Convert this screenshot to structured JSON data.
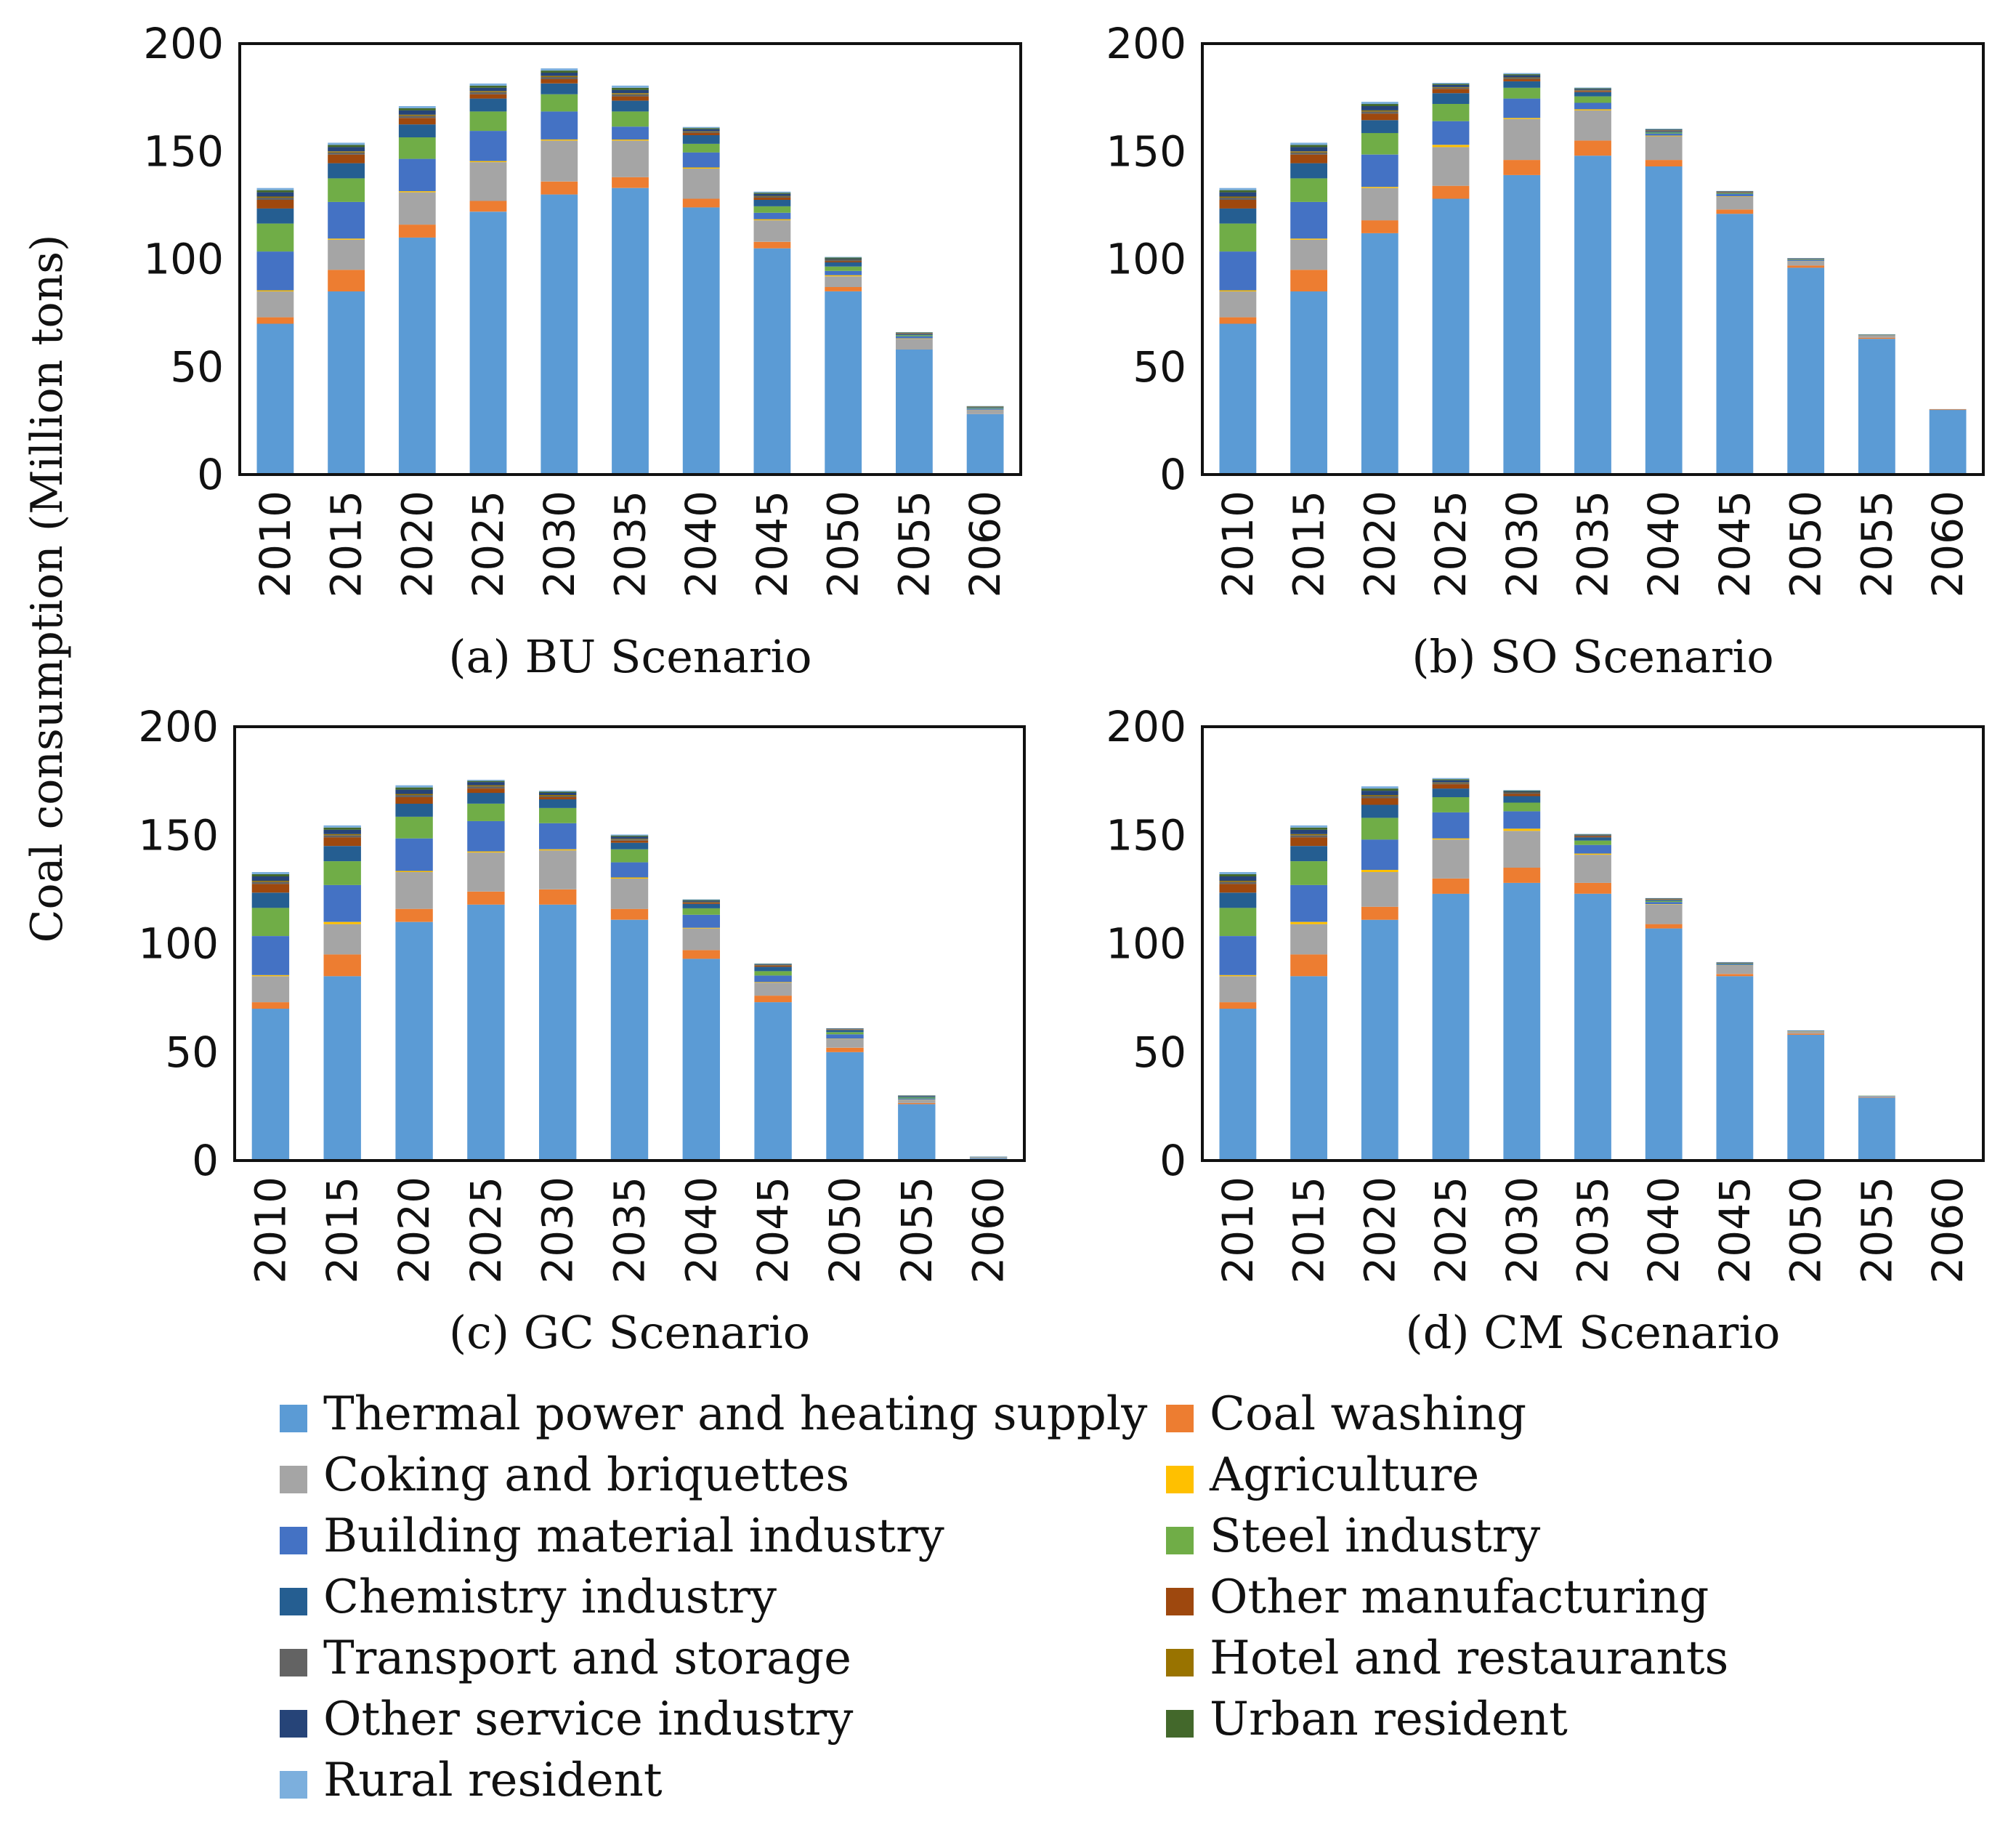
{
  "chart_data": {
    "type": "bar",
    "stacked": true,
    "ylabel": "Coal consumption (Million tons)",
    "ylim": [
      0,
      200
    ],
    "yticks": [
      0,
      50,
      100,
      150,
      200
    ],
    "categories": [
      "2010",
      "2015",
      "2020",
      "2025",
      "2030",
      "2035",
      "2040",
      "2045",
      "2050",
      "2055",
      "2060"
    ],
    "legend": [
      {
        "name": "Thermal power and heating supply",
        "color": "#5b9bd5"
      },
      {
        "name": "Coal washing",
        "color": "#ed7d31"
      },
      {
        "name": "Coking and briquettes",
        "color": "#a5a5a5"
      },
      {
        "name": "Agriculture",
        "color": "#ffc000"
      },
      {
        "name": "Building material industry",
        "color": "#4472c4"
      },
      {
        "name": "Steel industry",
        "color": "#70ad47"
      },
      {
        "name": "Chemistry industry",
        "color": "#255e91"
      },
      {
        "name": "Other manufacturing",
        "color": "#9e480e"
      },
      {
        "name": "Transport and storage",
        "color": "#636363"
      },
      {
        "name": "Hotel and restaurants",
        "color": "#997300"
      },
      {
        "name": "Other service industry",
        "color": "#264478"
      },
      {
        "name": "Urban resident",
        "color": "#43682b"
      },
      {
        "name": "Rural resident",
        "color": "#7cafdd"
      }
    ],
    "panels": [
      {
        "title": "(a) BU Scenario",
        "series": [
          {
            "name": "Thermal power and heating supply",
            "values": [
              70,
              85,
              110,
              122,
              130,
              133,
              124,
              105,
              85,
              58,
              28
            ]
          },
          {
            "name": "Coal washing",
            "values": [
              3,
              10,
              6,
              5,
              6,
              5,
              4,
              3,
              2,
              0,
              0
            ]
          },
          {
            "name": "Coking and briquettes",
            "values": [
              12,
              14,
              15,
              18,
              19,
              17,
              14,
              10,
              5,
              5,
              2
            ]
          },
          {
            "name": "Agriculture",
            "values": [
              0.5,
              0.5,
              0.5,
              0.5,
              0.5,
              0.5,
              0.5,
              0.5,
              0.5,
              0.2,
              0.1
            ]
          },
          {
            "name": "Building material industry",
            "values": [
              18,
              17,
              15,
              14,
              13,
              6,
              7,
              3,
              2,
              1,
              0.5
            ]
          },
          {
            "name": "Steel industry",
            "values": [
              13,
              11,
              10,
              9,
              8,
              7,
              4,
              3,
              2,
              0.5,
              0.3
            ]
          },
          {
            "name": "Chemistry industry",
            "values": [
              7,
              7,
              6,
              6,
              5,
              5,
              4,
              3,
              2,
              0.5,
              0.3
            ]
          },
          {
            "name": "Other manufacturing",
            "values": [
              4,
              4,
              3,
              2,
              2,
              2,
              1,
              1,
              0.5,
              0.2,
              0.1
            ]
          },
          {
            "name": "Transport and storage",
            "values": [
              1,
              1,
              1,
              1,
              1,
              1,
              0.5,
              0.5,
              0.5,
              0.1,
              0.1
            ]
          },
          {
            "name": "Hotel and restaurants",
            "values": [
              0.5,
              0.5,
              0.5,
              0.5,
              0.5,
              0.5,
              0.3,
              0.3,
              0.2,
              0.1,
              0.1
            ]
          },
          {
            "name": "Other service industry",
            "values": [
              2,
              2,
              2,
              1.5,
              1.5,
              1.5,
              1,
              1,
              0.5,
              0.2,
              0.1
            ]
          },
          {
            "name": "Urban resident",
            "values": [
              1,
              1,
              1,
              1,
              1,
              1,
              0.5,
              0.5,
              0.5,
              0.2,
              0.1
            ]
          },
          {
            "name": "Rural resident",
            "values": [
              1,
              1,
              1,
              1,
              1,
              1,
              0.5,
              0.5,
              0.3,
              0.1,
              0.1
            ]
          }
        ]
      },
      {
        "title": "(b) SO Scenario",
        "series": [
          {
            "name": "Thermal power and heating supply",
            "values": [
              70,
              85,
              112,
              128,
              139,
              148,
              143,
              121,
              96,
              63,
              30
            ]
          },
          {
            "name": "Coal washing",
            "values": [
              3,
              10,
              6,
              6,
              7,
              7,
              3,
              2,
              1,
              0.5,
              0.2
            ]
          },
          {
            "name": "Coking and briquettes",
            "values": [
              12,
              14,
              15,
              18,
              19,
              14,
              11,
              6,
              2,
              1,
              0.2
            ]
          },
          {
            "name": "Agriculture",
            "values": [
              0.5,
              0.5,
              0.5,
              1,
              0.5,
              0.5,
              0.3,
              0.2,
              0.1,
              0.1,
              0
            ]
          },
          {
            "name": "Building material industry",
            "values": [
              18,
              17,
              15,
              11,
              9,
              3,
              1,
              1,
              0.5,
              0.2,
              0
            ]
          },
          {
            "name": "Steel industry",
            "values": [
              13,
              11,
              10,
              8,
              5,
              3,
              0.5,
              0.3,
              0.2,
              0.1,
              0
            ]
          },
          {
            "name": "Chemistry industry",
            "values": [
              7,
              7,
              6,
              5,
              3,
              2,
              0.5,
              0.3,
              0.2,
              0.1,
              0
            ]
          },
          {
            "name": "Other manufacturing",
            "values": [
              4,
              4,
              3,
              2,
              1,
              0.5,
              0.2,
              0.2,
              0.1,
              0,
              0
            ]
          },
          {
            "name": "Transport and storage",
            "values": [
              1,
              1,
              1,
              0.5,
              0.5,
              0.3,
              0.2,
              0.1,
              0.1,
              0,
              0
            ]
          },
          {
            "name": "Hotel and restaurants",
            "values": [
              0.5,
              0.5,
              0.5,
              0.3,
              0.3,
              0.2,
              0.1,
              0.1,
              0,
              0,
              0
            ]
          },
          {
            "name": "Other service industry",
            "values": [
              2,
              2,
              2,
              1,
              1,
              0.5,
              0.3,
              0.2,
              0.1,
              0.1,
              0
            ]
          },
          {
            "name": "Urban resident",
            "values": [
              1,
              1,
              1,
              0.5,
              0.5,
              0.3,
              0.2,
              0.1,
              0.1,
              0,
              0
            ]
          },
          {
            "name": "Rural resident",
            "values": [
              1,
              1,
              1,
              0.5,
              0.5,
              0.3,
              0.2,
              0.1,
              0.1,
              0,
              0
            ]
          }
        ]
      },
      {
        "title": "(c) GC Scenario",
        "series": [
          {
            "name": "Thermal power and heating supply",
            "values": [
              70,
              85,
              110,
              118,
              118,
              111,
              93,
              73,
              50,
              26,
              1
            ]
          },
          {
            "name": "Coal washing",
            "values": [
              3,
              10,
              6,
              6,
              7,
              5,
              4,
              3,
              2,
              0.5,
              0.1
            ]
          },
          {
            "name": "Coking and briquettes",
            "values": [
              12,
              14,
              17,
              18,
              18,
              14,
              10,
              6,
              4,
              1.5,
              0.3
            ]
          },
          {
            "name": "Agriculture",
            "values": [
              0.5,
              1,
              0.5,
              0.5,
              0.5,
              0.5,
              0.3,
              0.3,
              0.2,
              0.1,
              0
            ]
          },
          {
            "name": "Building material industry",
            "values": [
              18,
              17,
              15,
              14,
              12,
              7,
              6,
              3,
              2,
              0.5,
              0.2
            ]
          },
          {
            "name": "Steel industry",
            "values": [
              13,
              11,
              10,
              8,
              7,
              6,
              3,
              2,
              1,
              0.5,
              0.1
            ]
          },
          {
            "name": "Chemistry industry",
            "values": [
              7,
              7,
              6,
              5,
              4,
              3,
              2,
              2,
              1,
              0.5,
              0.1
            ]
          },
          {
            "name": "Other manufacturing",
            "values": [
              4,
              4,
              3,
              2,
              1,
              1,
              0.5,
              0.5,
              0.2,
              0.1,
              0
            ]
          },
          {
            "name": "Transport and storage",
            "values": [
              1,
              1,
              1,
              1,
              0.5,
              0.5,
              0.3,
              0.2,
              0.1,
              0.1,
              0
            ]
          },
          {
            "name": "Hotel and restaurants",
            "values": [
              0.5,
              0.5,
              0.5,
              0.5,
              0.5,
              0.3,
              0.2,
              0.2,
              0.1,
              0,
              0
            ]
          },
          {
            "name": "Other service industry",
            "values": [
              2,
              2,
              2,
              1.5,
              1,
              1,
              0.5,
              0.3,
              0.2,
              0.1,
              0
            ]
          },
          {
            "name": "Urban resident",
            "values": [
              1,
              1,
              1,
              0.5,
              0.5,
              0.5,
              0.3,
              0.2,
              0.1,
              0.1,
              0
            ]
          },
          {
            "name": "Rural resident",
            "values": [
              1,
              1,
              1,
              0.5,
              0.5,
              0.5,
              0.3,
              0.2,
              0.1,
              0.1,
              0
            ]
          }
        ]
      },
      {
        "title": "(d) CM Scenario",
        "series": [
          {
            "name": "Thermal power and heating supply",
            "values": [
              70,
              85,
              111,
              123,
              128,
              123,
              107,
              85,
              58,
              29,
              0.5
            ]
          },
          {
            "name": "Coal washing",
            "values": [
              3,
              10,
              6,
              7,
              7,
              5,
              2,
              1,
              0.5,
              0.2,
              0
            ]
          },
          {
            "name": "Coking and briquettes",
            "values": [
              12,
              14,
              16,
              18,
              17,
              13,
              9,
              4,
              1,
              0.5,
              0.1
            ]
          },
          {
            "name": "Agriculture",
            "values": [
              0.5,
              1,
              1,
              0.5,
              1,
              0.5,
              0.2,
              0.1,
              0.1,
              0,
              0
            ]
          },
          {
            "name": "Building material industry",
            "values": [
              18,
              17,
              14,
              12,
              8,
              4,
              1,
              0.5,
              0.2,
              0.1,
              0
            ]
          },
          {
            "name": "Steel industry",
            "values": [
              13,
              11,
              10,
              7,
              4,
              2,
              0.5,
              0.2,
              0.1,
              0.1,
              0
            ]
          },
          {
            "name": "Chemistry industry",
            "values": [
              7,
              7,
              6,
              4,
              3,
              1.5,
              0.5,
              0.2,
              0.1,
              0,
              0
            ]
          },
          {
            "name": "Other manufacturing",
            "values": [
              4,
              4,
              3,
              2,
              1,
              0.5,
              0.2,
              0.1,
              0,
              0,
              0
            ]
          },
          {
            "name": "Transport and storage",
            "values": [
              1,
              1,
              1,
              0.5,
              0.5,
              0.3,
              0.1,
              0.1,
              0,
              0,
              0
            ]
          },
          {
            "name": "Hotel and restaurants",
            "values": [
              0.5,
              0.5,
              0.5,
              0.3,
              0.2,
              0.1,
              0.1,
              0,
              0,
              0,
              0
            ]
          },
          {
            "name": "Other service industry",
            "values": [
              2,
              2,
              2,
              1,
              0.5,
              0.3,
              0.2,
              0.1,
              0,
              0,
              0
            ]
          },
          {
            "name": "Urban resident",
            "values": [
              1,
              1,
              1,
              0.5,
              0.3,
              0.2,
              0.1,
              0.1,
              0,
              0,
              0
            ]
          },
          {
            "name": "Rural resident",
            "values": [
              1,
              1,
              1,
              0.5,
              0.3,
              0.2,
              0.1,
              0.1,
              0,
              0,
              0
            ]
          }
        ]
      }
    ]
  }
}
